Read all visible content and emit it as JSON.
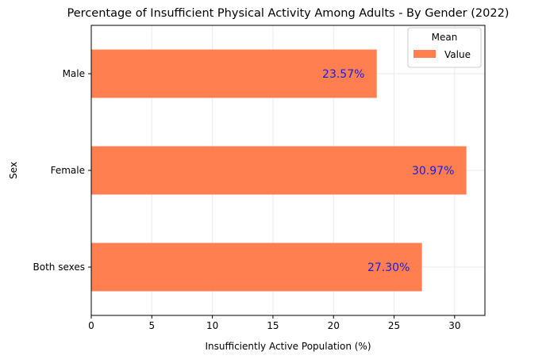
{
  "chart_data": {
    "type": "bar",
    "orientation": "horizontal",
    "title": "Percentage of Insufficient Physical Activity Among Adults - By Gender (2022)",
    "xlabel": "Insufficiently Active Population (%)",
    "ylabel": "Sex",
    "categories": [
      "Both sexes",
      "Female",
      "Male"
    ],
    "series": [
      {
        "name": "Value",
        "values": [
          27.3,
          30.97,
          23.57
        ]
      }
    ],
    "data_labels": [
      "27.30%",
      "30.97%",
      "23.57%"
    ],
    "xlim": [
      0,
      32.5
    ],
    "xticks": [
      0,
      5,
      10,
      15,
      20,
      25,
      30
    ],
    "grid": true,
    "legend": {
      "title": "Mean",
      "placement": "top-right"
    },
    "colors": {
      "bar": "#ff7f50",
      "data_label": "#1a1ae6",
      "grid": "#ebebeb"
    }
  }
}
